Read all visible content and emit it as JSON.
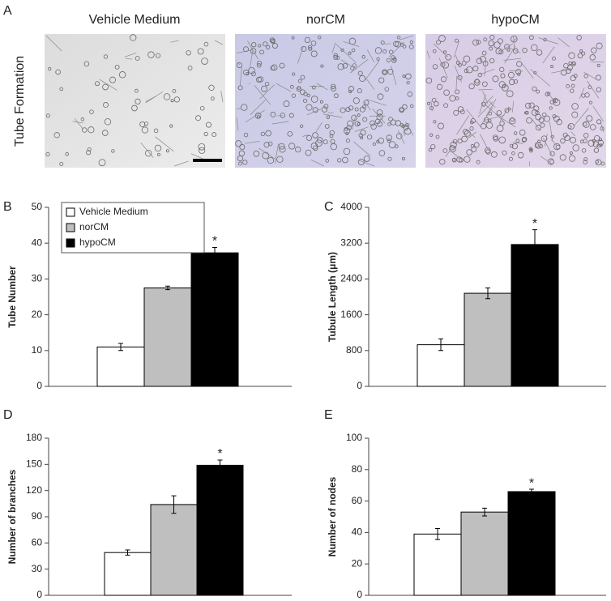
{
  "panel_a": {
    "letter": "A",
    "ylabel": "Tube Formation",
    "images": [
      "Vehicle Medium",
      "norCM",
      "hypoCM"
    ]
  },
  "chart_data": [
    {
      "type": "bar",
      "panel": "B",
      "ylabel": "Tube Number",
      "categories": [
        null
      ],
      "legend": "upper left",
      "ylim": [
        0,
        50
      ],
      "yticks": [
        0,
        10,
        20,
        30,
        40,
        50
      ],
      "series": [
        {
          "name": "Vehicle Medium",
          "color": "#ffffff",
          "values": [
            11
          ],
          "errors": [
            1
          ]
        },
        {
          "name": "norCM",
          "color": "#bfbfbf",
          "values": [
            27.5
          ],
          "errors": [
            0.5
          ]
        },
        {
          "name": "hypoCM",
          "color": "#000000",
          "values": [
            37.3
          ],
          "errors": [
            1.5
          ],
          "annotation": "*"
        }
      ]
    },
    {
      "type": "bar",
      "panel": "C",
      "ylabel": "Tubule Length (μm)",
      "categories": [
        null
      ],
      "ylim": [
        0,
        4000
      ],
      "yticks": [
        0,
        800,
        1600,
        2400,
        3200,
        4000
      ],
      "series": [
        {
          "color": "#ffffff",
          "values": [
            930
          ],
          "errors": [
            130
          ]
        },
        {
          "color": "#bfbfbf",
          "values": [
            2080
          ],
          "errors": [
            120
          ]
        },
        {
          "color": "#000000",
          "values": [
            3170
          ],
          "errors": [
            330
          ],
          "annotation": "*"
        }
      ]
    },
    {
      "type": "bar",
      "panel": "D",
      "ylabel": "Number of branches",
      "categories": [
        null
      ],
      "ylim": [
        0,
        180
      ],
      "yticks": [
        0,
        30,
        60,
        90,
        120,
        150,
        180
      ],
      "series": [
        {
          "color": "#ffffff",
          "values": [
            49
          ],
          "errors": [
            3
          ]
        },
        {
          "color": "#bfbfbf",
          "values": [
            104
          ],
          "errors": [
            10
          ]
        },
        {
          "color": "#000000",
          "values": [
            149
          ],
          "errors": [
            6
          ],
          "annotation": "*"
        }
      ]
    },
    {
      "type": "bar",
      "panel": "E",
      "ylabel": "Number of nodes",
      "categories": [
        null
      ],
      "ylim": [
        0,
        100
      ],
      "yticks": [
        0,
        20,
        40,
        60,
        80,
        100
      ],
      "series": [
        {
          "color": "#ffffff",
          "values": [
            39
          ],
          "errors": [
            3.5
          ]
        },
        {
          "color": "#bfbfbf",
          "values": [
            53
          ],
          "errors": [
            2.5
          ]
        },
        {
          "color": "#000000",
          "values": [
            66
          ],
          "errors": [
            1.5
          ],
          "annotation": "*"
        }
      ]
    }
  ]
}
